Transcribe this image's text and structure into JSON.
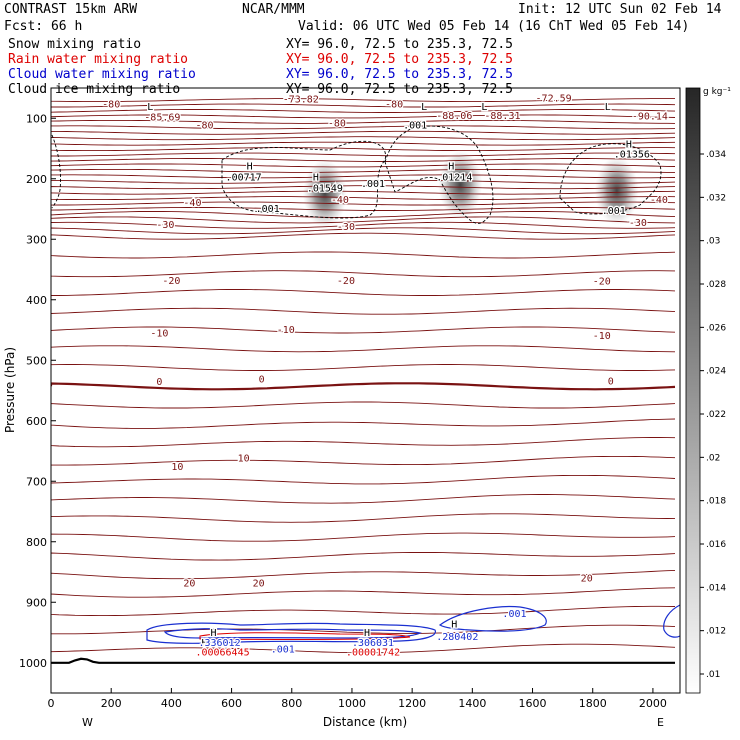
{
  "header": {
    "line1_left": "CONTRAST 15km ARW",
    "line1_center": "NCAR/MMM",
    "line1_right": "Init: 12 UTC Sun 02 Feb 14",
    "line2_left": "Fcst:   66 h",
    "line2_right": "Valid: 06 UTC Wed 05 Feb 14 (16 ChT Wed 05 Feb 14)",
    "fields": [
      {
        "name": "Snow mixing ratio",
        "xy": "XY=  96.0, 72.5 to 235.3, 72.5",
        "color": "#000000"
      },
      {
        "name": "Rain water mixing ratio",
        "xy": "XY=  96.0, 72.5 to 235.3, 72.5",
        "color": "#dd0000"
      },
      {
        "name": "Cloud water mixing ratio",
        "xy": "XY=  96.0, 72.5 to 235.3, 72.5",
        "color": "#0000cc"
      },
      {
        "name": "Cloud ice mixing ratio",
        "xy": "XY=  96.0, 72.5 to 235.3, 72.5",
        "color": "#000000"
      }
    ]
  },
  "chart_data": {
    "type": "cross-section",
    "xlabel": "Distance (km)",
    "ylabel": "Pressure (hPa)",
    "xlim": [
      0,
      2090
    ],
    "ylim": [
      1050,
      50
    ],
    "x_ticks": [
      0,
      200,
      400,
      600,
      800,
      1000,
      1200,
      1400,
      1600,
      1800,
      2000
    ],
    "y_ticks": [
      100,
      200,
      300,
      400,
      500,
      600,
      700,
      800,
      900,
      1000
    ],
    "x_endpoints": {
      "left": "W",
      "right": "E"
    },
    "colorbar": {
      "unit": "g kg⁻¹",
      "ticks": [
        ".01",
        ".012",
        ".014",
        ".016",
        ".018",
        ".02",
        ".022",
        ".024",
        ".026",
        ".028",
        ".03",
        ".032",
        ".034"
      ]
    },
    "temperature_contour_labels": [
      {
        "text": "-80",
        "x": 200,
        "p": 82
      },
      {
        "text": "-85.69",
        "x": 370,
        "p": 104
      },
      {
        "text": "-80",
        "x": 510,
        "p": 117
      },
      {
        "text": "-73.82",
        "x": 830,
        "p": 74
      },
      {
        "text": "-80",
        "x": 1140,
        "p": 82
      },
      {
        "text": "-88.06",
        "x": 1340,
        "p": 101
      },
      {
        "text": "-88.31",
        "x": 1500,
        "p": 101
      },
      {
        "text": "-72.59",
        "x": 1670,
        "p": 72
      },
      {
        "text": "-90.14",
        "x": 1990,
        "p": 102
      },
      {
        "text": "-80",
        "x": 950,
        "p": 114
      },
      {
        "text": "-40",
        "x": 470,
        "p": 245
      },
      {
        "text": "-40",
        "x": 960,
        "p": 240
      },
      {
        "text": "-40",
        "x": 2020,
        "p": 240
      },
      {
        "text": "-30",
        "x": 380,
        "p": 281
      },
      {
        "text": "-30",
        "x": 980,
        "p": 285
      },
      {
        "text": "-30",
        "x": 1950,
        "p": 278
      },
      {
        "text": "-20",
        "x": 400,
        "p": 374
      },
      {
        "text": "-20",
        "x": 980,
        "p": 374
      },
      {
        "text": "-20",
        "x": 1830,
        "p": 375
      },
      {
        "text": "-10",
        "x": 360,
        "p": 461
      },
      {
        "text": "-10",
        "x": 780,
        "p": 455
      },
      {
        "text": "-10",
        "x": 1830,
        "p": 465
      },
      {
        "text": "0",
        "x": 360,
        "p": 541
      },
      {
        "text": "0",
        "x": 700,
        "p": 537
      },
      {
        "text": "0",
        "x": 1860,
        "p": 540
      },
      {
        "text": "10",
        "x": 420,
        "p": 681
      },
      {
        "text": "10",
        "x": 640,
        "p": 667
      },
      {
        "text": "20",
        "x": 460,
        "p": 874
      },
      {
        "text": "20",
        "x": 690,
        "p": 874
      },
      {
        "text": "20",
        "x": 1780,
        "p": 866
      }
    ],
    "extrema_markers": [
      {
        "text": "L",
        "x": 330,
        "p": 86
      },
      {
        "text": "L",
        "x": 1240,
        "p": 86
      },
      {
        "text": "L",
        "x": 1440,
        "p": 86
      },
      {
        "text": "L",
        "x": 1850,
        "p": 86
      },
      {
        "text": "H",
        "x": 660,
        "p": 185
      },
      {
        "text": "H",
        "x": 880,
        "p": 203
      },
      {
        "text": "H",
        "x": 1330,
        "p": 185
      },
      {
        "text": "H",
        "x": 1920,
        "p": 148
      },
      {
        "text": "H",
        "x": 540,
        "p": 956
      },
      {
        "text": "H",
        "x": 1050,
        "p": 956
      },
      {
        "text": "H",
        "x": 1340,
        "p": 942
      },
      {
        "text": "H",
        "x": 510,
        "p": 972
      },
      {
        "text": "H",
        "x": 1040,
        "p": 972
      }
    ],
    "cloud_ice_labels": [
      {
        "text": ".00717",
        "x": 640,
        "p": 203
      },
      {
        "text": ".01549",
        "x": 910,
        "p": 221
      },
      {
        "text": ".001",
        "x": 1070,
        "p": 214
      },
      {
        "text": ".01214",
        "x": 1340,
        "p": 203
      },
      {
        "text": ".01356",
        "x": 1930,
        "p": 165
      },
      {
        "text": ".001",
        "x": 1210,
        "p": 117
      },
      {
        "text": ".001",
        "x": 720,
        "p": 255
      },
      {
        "text": ".001",
        "x": 1870,
        "p": 258
      }
    ],
    "cloud_water_labels": [
      {
        "text": ".336012",
        "x": 560,
        "p": 972
      },
      {
        "text": ".001",
        "x": 770,
        "p": 983
      },
      {
        "text": ".306031",
        "x": 1070,
        "p": 972
      },
      {
        "text": ".280402",
        "x": 1350,
        "p": 962
      },
      {
        "text": ".001",
        "x": 1540,
        "p": 924
      }
    ],
    "rain_labels": [
      {
        "text": ".00066445",
        "x": 570,
        "p": 988
      },
      {
        "text": ".00001742",
        "x": 1070,
        "p": 988
      }
    ],
    "snow_maxima": [
      {
        "x": 910,
        "p": 225,
        "value": 0.035
      },
      {
        "x": 1360,
        "p": 210,
        "value": 0.03
      },
      {
        "x": 1880,
        "p": 220,
        "value": 0.035
      }
    ]
  }
}
